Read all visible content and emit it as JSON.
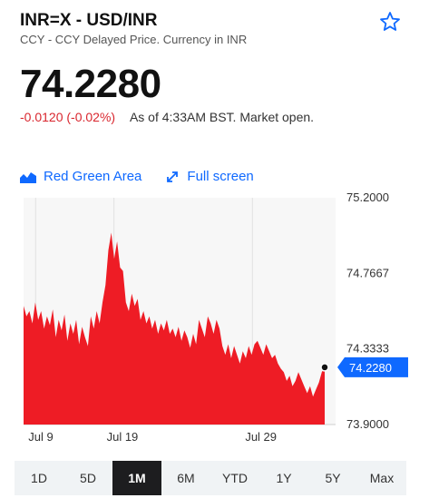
{
  "header": {
    "title": "INR=X - USD/INR",
    "subtitle": "CCY - CCY Delayed Price. Currency in INR"
  },
  "quote": {
    "price": "74.2280",
    "change": "-0.0120 (-0.02%)",
    "as_of": "As of 4:33AM BST. Market open."
  },
  "toolbar": {
    "chart_type_label": "Red Green Area",
    "fullscreen_label": "Full screen"
  },
  "colors": {
    "accent": "#0f69ff",
    "down": "#d9262e",
    "area": "#ee1c25",
    "price_tag": "#0f69ff"
  },
  "chart_data": {
    "type": "area",
    "ylim": [
      73.9,
      75.2
    ],
    "y_ticks": [
      "75.2000",
      "74.7667",
      "74.3333",
      "73.9000"
    ],
    "x_tick_labels": [
      "Jul 9",
      "Jul 19",
      "Jul 29"
    ],
    "x_tick_positions": [
      0.04,
      0.3,
      0.76
    ],
    "current_value_label": "74.2280",
    "current_value": 74.228,
    "series": [
      {
        "values": [
          74.58,
          74.52,
          74.55,
          74.48,
          74.6,
          74.5,
          74.55,
          74.45,
          74.52,
          74.47,
          74.56,
          74.4,
          74.5,
          74.44,
          74.53,
          74.38,
          74.48,
          74.42,
          74.5,
          74.36,
          74.46,
          74.4,
          74.35,
          74.52,
          74.45,
          74.55,
          74.48,
          74.6,
          74.7,
          74.9,
          75.0,
          74.85,
          74.95,
          74.8,
          74.78,
          74.6,
          74.55,
          74.65,
          74.58,
          74.62,
          74.5,
          74.55,
          74.48,
          74.52,
          74.45,
          74.5,
          74.42,
          74.48,
          74.44,
          74.5,
          74.42,
          74.45,
          74.4,
          74.46,
          74.38,
          74.44,
          74.4,
          74.34,
          74.42,
          74.36,
          74.5,
          74.45,
          74.4,
          74.52,
          74.48,
          74.42,
          74.5,
          74.45,
          74.35,
          74.3,
          74.36,
          74.28,
          74.35,
          74.3,
          74.25,
          74.32,
          74.28,
          74.35,
          74.3,
          74.36,
          74.38,
          74.34,
          74.3,
          74.36,
          74.32,
          74.28,
          74.3,
          74.25,
          74.22,
          74.2,
          74.15,
          74.18,
          74.12,
          74.15,
          74.2,
          74.16,
          74.12,
          74.08,
          74.12,
          74.06,
          74.1,
          74.14,
          74.2,
          74.228
        ]
      }
    ]
  },
  "ranges": [
    {
      "label": "1D",
      "active": false
    },
    {
      "label": "5D",
      "active": false
    },
    {
      "label": "1M",
      "active": true
    },
    {
      "label": "6M",
      "active": false
    },
    {
      "label": "YTD",
      "active": false
    },
    {
      "label": "1Y",
      "active": false
    },
    {
      "label": "5Y",
      "active": false
    },
    {
      "label": "Max",
      "active": false
    }
  ]
}
